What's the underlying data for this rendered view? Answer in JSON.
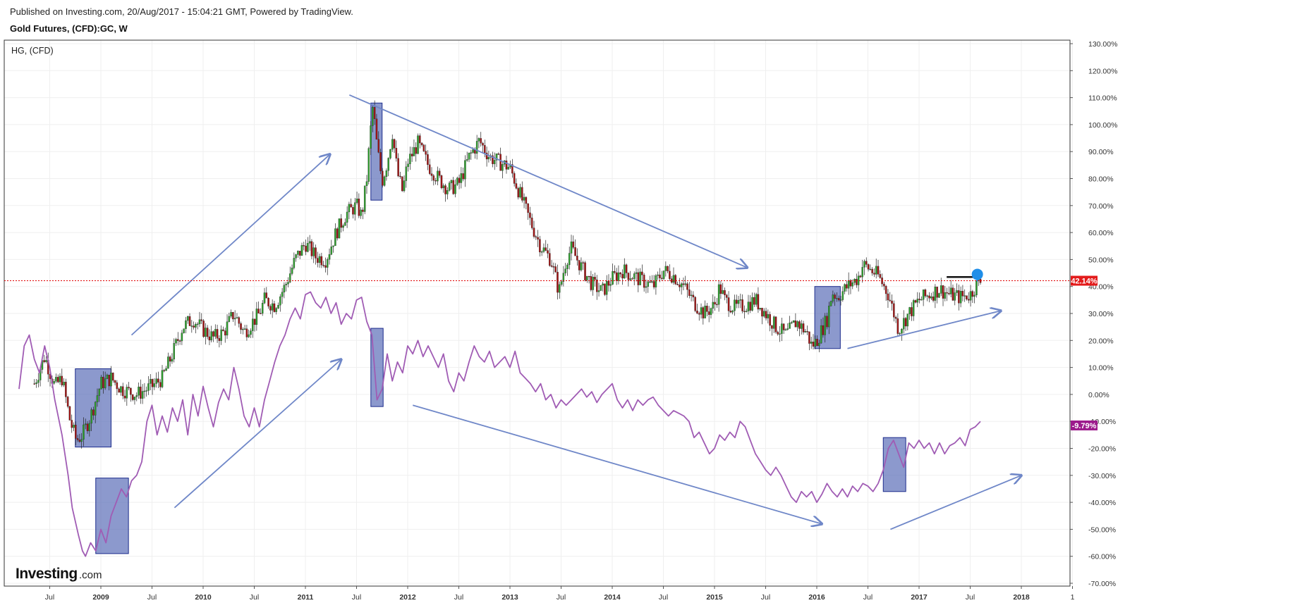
{
  "header": {
    "published": "Published on Investing.com, 20/Aug/2017 - 15:04:21 GMT, Powered by TradingView.",
    "title": "Gold Futures, (CFD):GC, W"
  },
  "legend": {
    "label": "HG,  (CFD)"
  },
  "logo": {
    "main": "Investing",
    "domain": ".com"
  },
  "colors": {
    "up": "#2e9e2e",
    "down": "#a01414",
    "purple_line": "#a05cb4",
    "arrow": "#6f87c8",
    "box_fill": "#5b6eb8",
    "box_stroke": "#1c2c8c",
    "price_line": "#e00000",
    "badge_red": "#e31b1b",
    "badge_purple": "#9c1a8c",
    "pin": "#1f8ee8",
    "grid": "#efefef"
  },
  "chart_data": {
    "type": "line",
    "y_axis": {
      "unit": "%",
      "ylim": [
        -72,
        132
      ],
      "ticks": [
        "130.00%",
        "120.00%",
        "110.00%",
        "100.00%",
        "90.00%",
        "80.00%",
        "70.00%",
        "60.00%",
        "50.00%",
        "40.00%",
        "30.00%",
        "20.00%",
        "10.00%",
        "0.00%",
        "-10.00%",
        "-20.00%",
        "-30.00%",
        "-40.00%",
        "-50.00%",
        "-60.00%",
        "-70.00%"
      ]
    },
    "x_axis": {
      "labels": [
        "Jul",
        "2009",
        "Jul",
        "2010",
        "Jul",
        "2011",
        "Jul",
        "2012",
        "Jul",
        "2013",
        "Jul",
        "2014",
        "Jul",
        "2015",
        "Jul",
        "2016",
        "Jul",
        "2017",
        "Jul",
        "2018",
        "1"
      ],
      "years": [
        "2009",
        "2010",
        "2011",
        "2012",
        "2013",
        "2014",
        "2015",
        "2016",
        "2017",
        "2018"
      ]
    },
    "current_price_line": 42.14,
    "series": [
      {
        "name": "HG,  (CFD)",
        "style": "candlestick",
        "last_value_label": "42.14%",
        "close": [
          [
            2008.35,
            4
          ],
          [
            2008.45,
            14
          ],
          [
            2008.55,
            3
          ],
          [
            2008.62,
            6
          ],
          [
            2008.7,
            -10
          ],
          [
            2008.76,
            -17
          ],
          [
            2008.82,
            -15
          ],
          [
            2008.9,
            -8
          ],
          [
            2008.95,
            -2
          ],
          [
            2009.0,
            4
          ],
          [
            2009.1,
            6
          ],
          [
            2009.2,
            2
          ],
          [
            2009.35,
            0
          ],
          [
            2009.5,
            3
          ],
          [
            2009.6,
            6
          ],
          [
            2009.7,
            15
          ],
          [
            2009.8,
            25
          ],
          [
            2009.9,
            28
          ],
          [
            2010.0,
            24
          ],
          [
            2010.1,
            21
          ],
          [
            2010.2,
            23
          ],
          [
            2010.3,
            30
          ],
          [
            2010.4,
            23
          ],
          [
            2010.55,
            30
          ],
          [
            2010.6,
            35
          ],
          [
            2010.7,
            33
          ],
          [
            2010.8,
            40
          ],
          [
            2010.9,
            50
          ],
          [
            2011.0,
            56
          ],
          [
            2011.1,
            51
          ],
          [
            2011.2,
            50
          ],
          [
            2011.3,
            60
          ],
          [
            2011.4,
            67
          ],
          [
            2011.5,
            70
          ],
          [
            2011.55,
            66
          ],
          [
            2011.6,
            80
          ],
          [
            2011.63,
            95
          ],
          [
            2011.66,
            107
          ],
          [
            2011.7,
            92
          ],
          [
            2011.75,
            79
          ],
          [
            2011.8,
            86
          ],
          [
            2011.85,
            97
          ],
          [
            2011.9,
            82
          ],
          [
            2011.95,
            75
          ],
          [
            2012.0,
            86
          ],
          [
            2012.1,
            93
          ],
          [
            2012.2,
            85
          ],
          [
            2012.3,
            80
          ],
          [
            2012.4,
            76
          ],
          [
            2012.5,
            78
          ],
          [
            2012.6,
            88
          ],
          [
            2012.7,
            94
          ],
          [
            2012.8,
            88
          ],
          [
            2012.9,
            86
          ],
          [
            2013.0,
            84
          ],
          [
            2013.1,
            74
          ],
          [
            2013.2,
            64
          ],
          [
            2013.3,
            55
          ],
          [
            2013.4,
            50
          ],
          [
            2013.48,
            38
          ],
          [
            2013.55,
            50
          ],
          [
            2013.6,
            54
          ],
          [
            2013.7,
            47
          ],
          [
            2013.8,
            41
          ],
          [
            2013.9,
            38
          ],
          [
            2014.0,
            43
          ],
          [
            2014.1,
            46
          ],
          [
            2014.2,
            44
          ],
          [
            2014.3,
            42
          ],
          [
            2014.4,
            40
          ],
          [
            2014.5,
            46
          ],
          [
            2014.6,
            44
          ],
          [
            2014.7,
            40
          ],
          [
            2014.8,
            34
          ],
          [
            2014.9,
            30
          ],
          [
            2015.0,
            33
          ],
          [
            2015.05,
            40
          ],
          [
            2015.1,
            35
          ],
          [
            2015.2,
            32
          ],
          [
            2015.3,
            33
          ],
          [
            2015.4,
            35
          ],
          [
            2015.5,
            30
          ],
          [
            2015.6,
            25
          ],
          [
            2015.7,
            22
          ],
          [
            2015.8,
            27
          ],
          [
            2015.9,
            23
          ],
          [
            2015.95,
            18
          ],
          [
            2016.0,
            20
          ],
          [
            2016.1,
            28
          ],
          [
            2016.15,
            38
          ],
          [
            2016.2,
            36
          ],
          [
            2016.3,
            40
          ],
          [
            2016.4,
            43
          ],
          [
            2016.45,
            48
          ],
          [
            2016.5,
            47
          ],
          [
            2016.6,
            44
          ],
          [
            2016.7,
            37
          ],
          [
            2016.8,
            24
          ],
          [
            2016.9,
            30
          ],
          [
            2017.0,
            35
          ],
          [
            2017.1,
            37
          ],
          [
            2017.2,
            39
          ],
          [
            2017.3,
            37
          ],
          [
            2017.4,
            36
          ],
          [
            2017.5,
            37
          ],
          [
            2017.55,
            40
          ],
          [
            2017.6,
            42
          ]
        ]
      },
      {
        "name": "GC",
        "style": "line",
        "last_value_label": "-9.79%",
        "values": [
          [
            2008.2,
            2
          ],
          [
            2008.25,
            18
          ],
          [
            2008.3,
            22
          ],
          [
            2008.35,
            13
          ],
          [
            2008.4,
            8
          ],
          [
            2008.45,
            18
          ],
          [
            2008.5,
            10
          ],
          [
            2008.55,
            -2
          ],
          [
            2008.62,
            -15
          ],
          [
            2008.68,
            -30
          ],
          [
            2008.72,
            -42
          ],
          [
            2008.78,
            -52
          ],
          [
            2008.82,
            -58
          ],
          [
            2008.85,
            -60
          ],
          [
            2008.9,
            -55
          ],
          [
            2008.95,
            -58
          ],
          [
            2009.0,
            -50
          ],
          [
            2009.05,
            -55
          ],
          [
            2009.1,
            -45
          ],
          [
            2009.15,
            -40
          ],
          [
            2009.2,
            -35
          ],
          [
            2009.25,
            -38
          ],
          [
            2009.3,
            -32
          ],
          [
            2009.35,
            -30
          ],
          [
            2009.4,
            -25
          ],
          [
            2009.45,
            -10
          ],
          [
            2009.5,
            -4
          ],
          [
            2009.55,
            -15
          ],
          [
            2009.6,
            -8
          ],
          [
            2009.65,
            -14
          ],
          [
            2009.7,
            -5
          ],
          [
            2009.75,
            -10
          ],
          [
            2009.8,
            -2
          ],
          [
            2009.85,
            -15
          ],
          [
            2009.9,
            0
          ],
          [
            2009.95,
            -8
          ],
          [
            2010.0,
            3
          ],
          [
            2010.05,
            -5
          ],
          [
            2010.1,
            -12
          ],
          [
            2010.15,
            -3
          ],
          [
            2010.2,
            2
          ],
          [
            2010.25,
            -2
          ],
          [
            2010.3,
            10
          ],
          [
            2010.35,
            2
          ],
          [
            2010.4,
            -8
          ],
          [
            2010.45,
            -12
          ],
          [
            2010.5,
            -5
          ],
          [
            2010.55,
            -12
          ],
          [
            2010.6,
            -2
          ],
          [
            2010.65,
            5
          ],
          [
            2010.7,
            12
          ],
          [
            2010.75,
            18
          ],
          [
            2010.8,
            22
          ],
          [
            2010.85,
            28
          ],
          [
            2010.9,
            32
          ],
          [
            2010.95,
            28
          ],
          [
            2011.0,
            37
          ],
          [
            2011.05,
            38
          ],
          [
            2011.1,
            34
          ],
          [
            2011.15,
            32
          ],
          [
            2011.2,
            36
          ],
          [
            2011.25,
            30
          ],
          [
            2011.3,
            34
          ],
          [
            2011.35,
            26
          ],
          [
            2011.4,
            30
          ],
          [
            2011.45,
            28
          ],
          [
            2011.5,
            35
          ],
          [
            2011.55,
            36
          ],
          [
            2011.6,
            27
          ],
          [
            2011.65,
            22
          ],
          [
            2011.7,
            -2
          ],
          [
            2011.75,
            2
          ],
          [
            2011.8,
            15
          ],
          [
            2011.85,
            5
          ],
          [
            2011.9,
            12
          ],
          [
            2011.95,
            8
          ],
          [
            2012.0,
            18
          ],
          [
            2012.05,
            15
          ],
          [
            2012.1,
            20
          ],
          [
            2012.15,
            14
          ],
          [
            2012.2,
            18
          ],
          [
            2012.3,
            10
          ],
          [
            2012.35,
            15
          ],
          [
            2012.4,
            5
          ],
          [
            2012.45,
            1
          ],
          [
            2012.5,
            8
          ],
          [
            2012.55,
            5
          ],
          [
            2012.6,
            12
          ],
          [
            2012.65,
            18
          ],
          [
            2012.7,
            14
          ],
          [
            2012.75,
            12
          ],
          [
            2012.8,
            16
          ],
          [
            2012.85,
            10
          ],
          [
            2012.9,
            12
          ],
          [
            2012.95,
            14
          ],
          [
            2013.0,
            10
          ],
          [
            2013.05,
            16
          ],
          [
            2013.1,
            8
          ],
          [
            2013.15,
            6
          ],
          [
            2013.2,
            4
          ],
          [
            2013.25,
            1
          ],
          [
            2013.3,
            4
          ],
          [
            2013.35,
            -2
          ],
          [
            2013.4,
            0
          ],
          [
            2013.45,
            -5
          ],
          [
            2013.5,
            -2
          ],
          [
            2013.55,
            -4
          ],
          [
            2013.6,
            -2
          ],
          [
            2013.65,
            0
          ],
          [
            2013.7,
            2
          ],
          [
            2013.75,
            -1
          ],
          [
            2013.8,
            1
          ],
          [
            2013.85,
            -3
          ],
          [
            2013.9,
            0
          ],
          [
            2013.95,
            2
          ],
          [
            2014.0,
            4
          ],
          [
            2014.05,
            -2
          ],
          [
            2014.1,
            -5
          ],
          [
            2014.15,
            -2
          ],
          [
            2014.2,
            -6
          ],
          [
            2014.25,
            -2
          ],
          [
            2014.3,
            -4
          ],
          [
            2014.35,
            -2
          ],
          [
            2014.4,
            -1
          ],
          [
            2014.45,
            -4
          ],
          [
            2014.5,
            -6
          ],
          [
            2014.55,
            -8
          ],
          [
            2014.6,
            -6
          ],
          [
            2014.65,
            -7
          ],
          [
            2014.7,
            -8
          ],
          [
            2014.75,
            -10
          ],
          [
            2014.8,
            -16
          ],
          [
            2014.85,
            -14
          ],
          [
            2014.9,
            -18
          ],
          [
            2014.95,
            -22
          ],
          [
            2015.0,
            -20
          ],
          [
            2015.05,
            -15
          ],
          [
            2015.1,
            -17
          ],
          [
            2015.15,
            -14
          ],
          [
            2015.2,
            -16
          ],
          [
            2015.25,
            -10
          ],
          [
            2015.3,
            -12
          ],
          [
            2015.35,
            -17
          ],
          [
            2015.4,
            -22
          ],
          [
            2015.45,
            -25
          ],
          [
            2015.5,
            -28
          ],
          [
            2015.55,
            -30
          ],
          [
            2015.6,
            -27
          ],
          [
            2015.65,
            -30
          ],
          [
            2015.7,
            -34
          ],
          [
            2015.75,
            -38
          ],
          [
            2015.8,
            -40
          ],
          [
            2015.85,
            -36
          ],
          [
            2015.9,
            -38
          ],
          [
            2015.95,
            -36
          ],
          [
            2016.0,
            -40
          ],
          [
            2016.05,
            -37
          ],
          [
            2016.1,
            -33
          ],
          [
            2016.15,
            -36
          ],
          [
            2016.2,
            -38
          ],
          [
            2016.25,
            -35
          ],
          [
            2016.3,
            -38
          ],
          [
            2016.35,
            -34
          ],
          [
            2016.4,
            -36
          ],
          [
            2016.45,
            -33
          ],
          [
            2016.5,
            -34
          ],
          [
            2016.55,
            -36
          ],
          [
            2016.6,
            -33
          ],
          [
            2016.65,
            -28
          ],
          [
            2016.7,
            -20
          ],
          [
            2016.75,
            -17
          ],
          [
            2016.8,
            -22
          ],
          [
            2016.85,
            -27
          ],
          [
            2016.9,
            -18
          ],
          [
            2016.95,
            -20
          ],
          [
            2017.0,
            -17
          ],
          [
            2017.05,
            -20
          ],
          [
            2017.1,
            -18
          ],
          [
            2017.15,
            -22
          ],
          [
            2017.2,
            -18
          ],
          [
            2017.25,
            -22
          ],
          [
            2017.3,
            -19
          ],
          [
            2017.35,
            -18
          ],
          [
            2017.4,
            -16
          ],
          [
            2017.45,
            -19
          ],
          [
            2017.5,
            -13
          ],
          [
            2017.55,
            -12
          ],
          [
            2017.6,
            -10
          ]
        ]
      }
    ]
  }
}
